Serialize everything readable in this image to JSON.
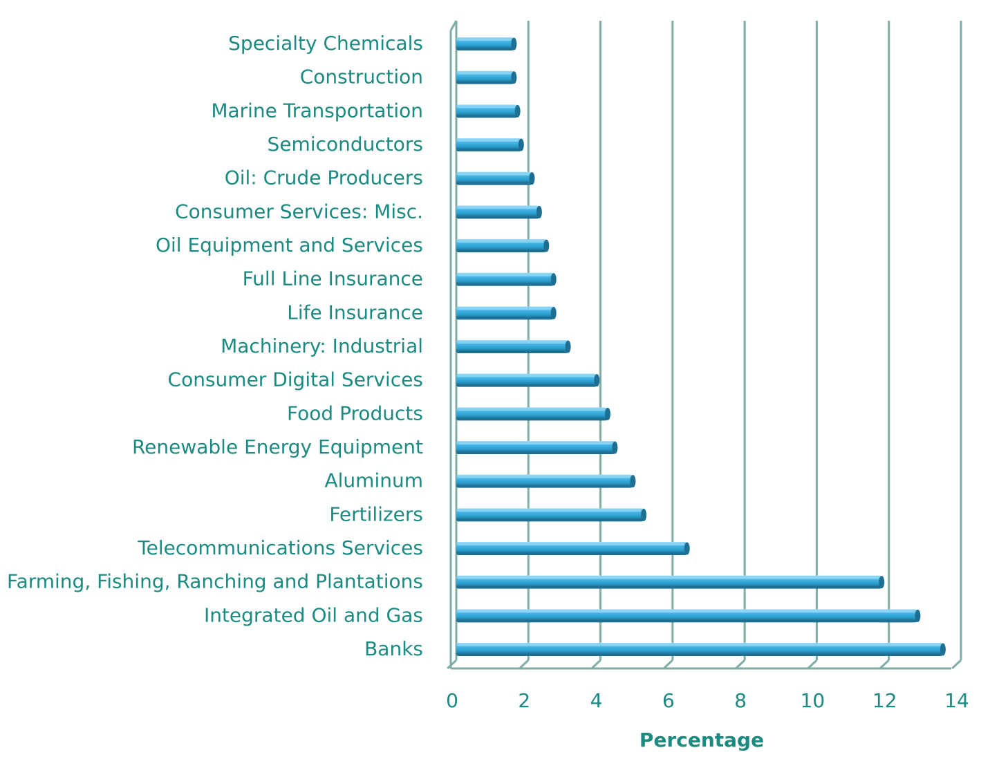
{
  "chart_data": {
    "type": "bar",
    "orientation": "horizontal",
    "style": "3d-cylinder",
    "categories": [
      "Specialty Chemicals",
      "Construction",
      "Marine Transportation",
      "Semiconductors",
      "Oil: Crude Producers",
      "Consumer Services: Misc.",
      "Oil Equipment and Services",
      "Full Line Insurance",
      "Life Insurance",
      "Machinery: Industrial",
      "Consumer Digital Services",
      "Food Products",
      "Renewable Energy Equipment",
      "Aluminum",
      "Fertilizers",
      "Telecommunications Services",
      "Farming, Fishing, Ranching and Plantations",
      "Integrated Oil and Gas",
      "Banks"
    ],
    "values": [
      1.6,
      1.6,
      1.7,
      1.8,
      2.1,
      2.3,
      2.5,
      2.7,
      2.7,
      3.1,
      3.9,
      4.2,
      4.4,
      4.9,
      5.2,
      6.4,
      11.8,
      12.8,
      13.5
    ],
    "xlabel": "Percentage",
    "ylabel": "",
    "title": "",
    "xlim": [
      0,
      14
    ],
    "xticks": [
      0,
      2,
      4,
      6,
      8,
      10,
      12,
      14
    ],
    "xtick_labels": [
      "0",
      "2",
      "4",
      "6",
      "8",
      "10",
      "12",
      "14"
    ],
    "grid": "vertical",
    "legend": "none",
    "colors": {
      "bar": "#37aee2",
      "bar_dark": "#1f6f93",
      "bar_light": "#8fd6f5",
      "grid": "#7fada4",
      "text": "#1b8a80"
    }
  }
}
